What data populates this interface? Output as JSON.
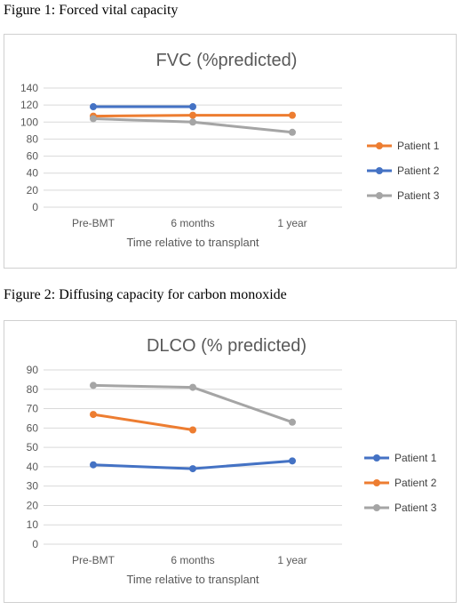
{
  "captions": {
    "figure1": "Figure 1: Forced vital capacity",
    "figure2": "Figure 2: Diffusing capacity for carbon monoxide"
  },
  "chart_data": [
    {
      "type": "line",
      "title": "FVC (%predicted)",
      "xlabel": "Time relative to transplant",
      "ylabel": "",
      "categories": [
        "Pre-BMT",
        "6 months",
        "1 year"
      ],
      "ylim": [
        0,
        140
      ],
      "yticks": [
        0,
        20,
        40,
        60,
        80,
        100,
        120,
        140
      ],
      "grid": true,
      "legend": "right",
      "series": [
        {
          "name": "Patient 1",
          "color": "#ED7D31",
          "values": [
            107,
            108,
            108
          ]
        },
        {
          "name": "Patient 2",
          "color": "#4472C4",
          "values": [
            118,
            118,
            null
          ]
        },
        {
          "name": "Patient 3",
          "color": "#A5A5A5",
          "values": [
            104,
            100,
            88
          ]
        }
      ]
    },
    {
      "type": "line",
      "title": "DLCO (% predicted)",
      "xlabel": "Time relative to transplant",
      "ylabel": "",
      "categories": [
        "Pre-BMT",
        "6 months",
        "1 year"
      ],
      "ylim": [
        0,
        90
      ],
      "yticks": [
        0,
        10,
        20,
        30,
        40,
        50,
        60,
        70,
        80,
        90
      ],
      "grid": true,
      "legend": "right",
      "series": [
        {
          "name": "Patient 1",
          "color": "#4472C4",
          "values": [
            41,
            39,
            43
          ]
        },
        {
          "name": "Patient 2",
          "color": "#ED7D31",
          "values": [
            67,
            59,
            null
          ]
        },
        {
          "name": "Patient 3",
          "color": "#A5A5A5",
          "values": [
            82,
            81,
            63
          ]
        }
      ]
    }
  ]
}
